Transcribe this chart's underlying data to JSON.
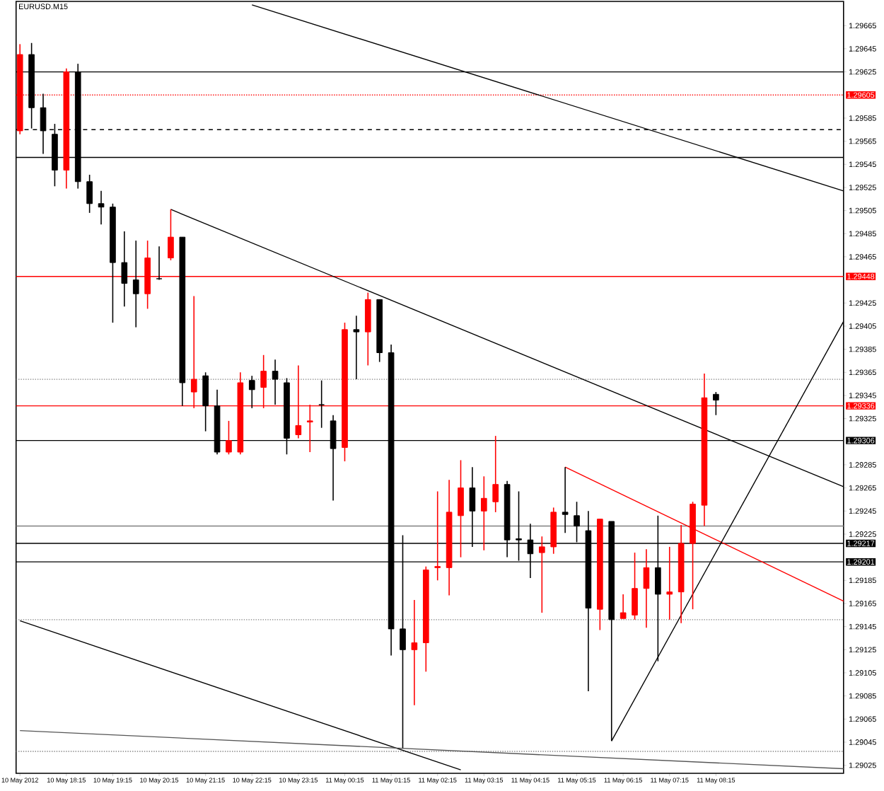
{
  "chart_data": {
    "type": "candlestick",
    "title": "EURUSD.M15",
    "x": [
      "2012-05-10T17:15",
      "2012-05-10T17:30",
      "2012-05-10T17:45",
      "2012-05-10T18:00",
      "2012-05-10T18:15",
      "2012-05-10T18:30",
      "2012-05-10T18:45",
      "2012-05-10T19:00",
      "2012-05-10T19:15",
      "2012-05-10T19:30",
      "2012-05-10T19:45",
      "2012-05-10T20:00",
      "2012-05-10T20:15",
      "2012-05-10T20:30",
      "2012-05-10T20:45",
      "2012-05-10T21:00",
      "2012-05-10T21:15",
      "2012-05-10T21:30",
      "2012-05-10T21:45",
      "2012-05-10T22:00",
      "2012-05-10T22:15",
      "2012-05-10T22:30",
      "2012-05-10T22:45",
      "2012-05-10T23:00",
      "2012-05-10T23:15",
      "2012-05-10T23:30",
      "2012-05-10T23:45",
      "2012-05-11T00:00",
      "2012-05-11T00:15",
      "2012-05-11T00:30",
      "2012-05-11T00:45",
      "2012-05-11T01:00",
      "2012-05-11T01:15",
      "2012-05-11T01:30",
      "2012-05-11T01:45",
      "2012-05-11T02:00",
      "2012-05-11T02:15",
      "2012-05-11T02:30",
      "2012-05-11T02:45",
      "2012-05-11T03:00",
      "2012-05-11T03:15",
      "2012-05-11T03:30",
      "2012-05-11T03:45",
      "2012-05-11T04:00",
      "2012-05-11T04:15",
      "2012-05-11T04:30",
      "2012-05-11T04:45",
      "2012-05-11T05:00",
      "2012-05-11T05:15",
      "2012-05-11T05:30",
      "2012-05-11T05:45",
      "2012-05-11T06:00",
      "2012-05-11T06:15",
      "2012-05-11T06:30",
      "2012-05-11T06:45",
      "2012-05-11T07:00",
      "2012-05-11T07:15",
      "2012-05-11T07:30",
      "2012-05-11T07:45",
      "2012-05-11T08:00",
      "2012-05-11T08:15"
    ],
    "ohlc": [
      [
        1.29574,
        1.29649,
        1.29571,
        1.2964
      ],
      [
        1.2964,
        1.2965,
        1.29576,
        1.29594
      ],
      [
        1.29594,
        1.29606,
        1.29554,
        1.29574
      ],
      [
        1.29571,
        1.2958,
        1.29526,
        1.2954
      ],
      [
        1.2954,
        1.29628,
        1.29524,
        1.29625
      ],
      [
        1.29625,
        1.29632,
        1.29524,
        1.2953
      ],
      [
        1.2953,
        1.29536,
        1.29503,
        1.29511
      ],
      [
        1.29511,
        1.29522,
        1.29493,
        1.29508
      ],
      [
        1.29508,
        1.29511,
        1.29408,
        1.2946
      ],
      [
        1.2946,
        1.29487,
        1.29422,
        1.29442
      ],
      [
        1.29445,
        1.29479,
        1.29404,
        1.29433
      ],
      [
        1.29433,
        1.29479,
        1.2942,
        1.29464
      ],
      [
        1.29446,
        1.29474,
        1.29445,
        1.29446
      ],
      [
        1.29464,
        1.29506,
        1.29462,
        1.29482
      ],
      [
        1.29482,
        1.29482,
        1.29336,
        1.29356
      ],
      [
        1.29348,
        1.29431,
        1.29334,
        1.29359
      ],
      [
        1.29362,
        1.29365,
        1.29314,
        1.29336
      ],
      [
        1.29336,
        1.2935,
        1.29294,
        1.29296
      ],
      [
        1.29296,
        1.29323,
        1.29294,
        1.29306
      ],
      [
        1.29296,
        1.29365,
        1.29294,
        1.29356
      ],
      [
        1.29358,
        1.29362,
        1.29334,
        1.2935
      ],
      [
        1.29352,
        1.2938,
        1.29334,
        1.29366
      ],
      [
        1.29366,
        1.29376,
        1.29337,
        1.29359
      ],
      [
        1.29356,
        1.2936,
        1.29294,
        1.29308
      ],
      [
        1.29311,
        1.29371,
        1.29308,
        1.29319
      ],
      [
        1.29322,
        1.29337,
        1.29296,
        1.29323
      ],
      [
        1.29337,
        1.29358,
        1.29317,
        1.29337
      ],
      [
        1.29323,
        1.29328,
        1.29254,
        1.29299
      ],
      [
        1.293,
        1.29408,
        1.29288,
        1.29402
      ],
      [
        1.29402,
        1.29414,
        1.29359,
        1.294
      ],
      [
        1.294,
        1.29434,
        1.29371,
        1.29428
      ],
      [
        1.29428,
        1.29428,
        1.29374,
        1.29382
      ],
      [
        1.29382,
        1.29389,
        1.2912,
        1.29143
      ],
      [
        1.29143,
        1.29224,
        1.2904,
        1.29125
      ],
      [
        1.29125,
        1.29168,
        1.29077,
        1.29131
      ],
      [
        1.29131,
        1.29197,
        1.29106,
        1.29194
      ],
      [
        1.29196,
        1.29262,
        1.29185,
        1.29197
      ],
      [
        1.29196,
        1.29272,
        1.29172,
        1.29244
      ],
      [
        1.29241,
        1.29289,
        1.29205,
        1.29265
      ],
      [
        1.29265,
        1.29283,
        1.29214,
        1.29245
      ],
      [
        1.29245,
        1.29275,
        1.29211,
        1.29256
      ],
      [
        1.29253,
        1.2931,
        1.29244,
        1.29268
      ],
      [
        1.29268,
        1.29271,
        1.29205,
        1.2922
      ],
      [
        1.29221,
        1.29262,
        1.29202,
        1.2922
      ],
      [
        1.2922,
        1.29234,
        1.29187,
        1.29208
      ],
      [
        1.29209,
        1.29223,
        1.29157,
        1.29214
      ],
      [
        1.29214,
        1.29248,
        1.29208,
        1.29244
      ],
      [
        1.29244,
        1.29283,
        1.29226,
        1.29242
      ],
      [
        1.29241,
        1.29253,
        1.29218,
        1.29232
      ],
      [
        1.29228,
        1.29245,
        1.29089,
        1.29161
      ],
      [
        1.2916,
        1.29238,
        1.29142,
        1.29238
      ],
      [
        1.29236,
        1.29236,
        1.29046,
        1.29151
      ],
      [
        1.29152,
        1.29173,
        1.29152,
        1.29157
      ],
      [
        1.29155,
        1.29209,
        1.29151,
        1.29178
      ],
      [
        1.29178,
        1.29212,
        1.29144,
        1.29196
      ],
      [
        1.29196,
        1.29241,
        1.29115,
        1.29173
      ],
      [
        1.29173,
        1.29214,
        1.29151,
        1.29175
      ],
      [
        1.29175,
        1.29233,
        1.29148,
        1.29217
      ],
      [
        1.29217,
        1.29253,
        1.2916,
        1.29251
      ],
      [
        1.2925,
        1.29364,
        1.29232,
        1.29343
      ],
      [
        1.29346,
        1.29348,
        1.29328,
        1.29341
      ]
    ],
    "colors": [
      "#ff0000",
      "#000000",
      "#000000",
      "#000000",
      "#ff0000",
      "#000000",
      "#000000",
      "#000000",
      "#000000",
      "#000000",
      "#000000",
      "#ff0000",
      "#000000",
      "#ff0000",
      "#000000",
      "#ff0000",
      "#000000",
      "#000000",
      "#ff0000",
      "#ff0000",
      "#000000",
      "#ff0000",
      "#000000",
      "#000000",
      "#ff0000",
      "#ff0000",
      "#000000",
      "#000000",
      "#ff0000",
      "#000000",
      "#ff0000",
      "#000000",
      "#000000",
      "#000000",
      "#ff0000",
      "#ff0000",
      "#ff0000",
      "#ff0000",
      "#ff0000",
      "#000000",
      "#ff0000",
      "#ff0000",
      "#000000",
      "#000000",
      "#000000",
      "#ff0000",
      "#ff0000",
      "#000000",
      "#000000",
      "#000000",
      "#ff0000",
      "#000000",
      "#ff0000",
      "#ff0000",
      "#ff0000",
      "#000000",
      "#ff0000",
      "#ff0000",
      "#ff0000",
      "#ff0000",
      "#000000"
    ],
    "xlim": [
      "2012-05-10T17:10",
      "2012-05-11T11:00"
    ],
    "xticks": [
      {
        "value": "2012-05-10T17:15",
        "label": "10 May 2012"
      },
      {
        "value": "2012-05-10T18:15",
        "label": "10 May 18:15"
      },
      {
        "value": "2012-05-10T19:15",
        "label": "10 May 19:15"
      },
      {
        "value": "2012-05-10T20:15",
        "label": "10 May 20:15"
      },
      {
        "value": "2012-05-10T21:15",
        "label": "10 May 21:15"
      },
      {
        "value": "2012-05-10T22:15",
        "label": "10 May 22:15"
      },
      {
        "value": "2012-05-10T23:15",
        "label": "10 May 23:15"
      },
      {
        "value": "2012-05-11T00:15",
        "label": "11 May 00:15"
      },
      {
        "value": "2012-05-11T01:15",
        "label": "11 May 01:15"
      },
      {
        "value": "2012-05-11T02:15",
        "label": "11 May 02:15"
      },
      {
        "value": "2012-05-11T03:15",
        "label": "11 May 03:15"
      },
      {
        "value": "2012-05-11T04:15",
        "label": "11 May 04:15"
      },
      {
        "value": "2012-05-11T05:15",
        "label": "11 May 05:15"
      },
      {
        "value": "2012-05-11T06:15",
        "label": "11 May 06:15"
      },
      {
        "value": "2012-05-11T07:15",
        "label": "11 May 07:15"
      },
      {
        "value": "2012-05-11T08:15",
        "label": "11 May 08:15"
      }
    ],
    "ylim": [
      1.29018,
      1.29686
    ],
    "yticks": [
      1.29025,
      1.29045,
      1.29065,
      1.29085,
      1.29105,
      1.29125,
      1.29145,
      1.29165,
      1.29185,
      1.29225,
      1.29245,
      1.29265,
      1.29285,
      1.29325,
      1.29345,
      1.29365,
      1.29385,
      1.29405,
      1.29425,
      1.29465,
      1.29485,
      1.29505,
      1.29525,
      1.29545,
      1.29565,
      1.29585,
      1.29625,
      1.29645,
      1.29665
    ],
    "ref_lines": [
      {
        "axis": "y",
        "value": 1.29625,
        "color": "#000000",
        "line_style": "solid"
      },
      {
        "axis": "y",
        "value": 1.29605,
        "label": "1.29605",
        "color": "#ff0000",
        "line_style": "dotted"
      },
      {
        "axis": "y",
        "value": 1.29575,
        "color": "#000000",
        "line_style": "dashed"
      },
      {
        "axis": "y",
        "value": 1.29551,
        "color": "#000000",
        "line_style": "solid"
      },
      {
        "axis": "y",
        "value": 1.29448,
        "label": "1.29448",
        "color": "#ff0000",
        "line_style": "solid"
      },
      {
        "axis": "y",
        "value": 1.29359,
        "color": "#808080",
        "line_style": "dotted"
      },
      {
        "axis": "y",
        "value": 1.29336,
        "label": "1.29336",
        "color": "#ff0000",
        "line_style": "solid"
      },
      {
        "axis": "y",
        "value": 1.29306,
        "label": "1.29306",
        "color": "#000000",
        "line_style": "solid"
      },
      {
        "axis": "y",
        "value": 1.29232,
        "color": "#808080",
        "line_style": "solid"
      },
      {
        "axis": "y",
        "value": 1.29217,
        "label": "1.29217",
        "color": "#000000",
        "line_style": "solid"
      },
      {
        "axis": "y",
        "value": 1.29201,
        "label": "1.29201",
        "color": "#000000",
        "line_style": "solid"
      },
      {
        "axis": "y",
        "value": 1.29151,
        "color": "#808080",
        "line_style": "dotted"
      },
      {
        "axis": "y",
        "value": 1.29037,
        "color": "#808080",
        "line_style": "dotted"
      }
    ],
    "series": [
      {
        "type": "line",
        "color": "#000000",
        "x": [
          "2012-05-10T22:15",
          "2012-05-11T11:00"
        ],
        "values": [
          1.29683,
          1.29522
        ]
      },
      {
        "type": "line",
        "color": "#000000",
        "x": [
          "2012-05-10T20:30",
          "2012-05-11T11:00"
        ],
        "values": [
          1.29506,
          1.29266
        ]
      },
      {
        "type": "line",
        "color": "#ff0000",
        "x": [
          "2012-05-11T05:00",
          "2012-05-11T11:00"
        ],
        "values": [
          1.29283,
          1.29167
        ]
      },
      {
        "type": "line",
        "color": "#000000",
        "x": [
          "2012-05-11T06:00",
          "2012-05-11T11:00"
        ],
        "values": [
          1.29046,
          1.29409
        ]
      },
      {
        "type": "line",
        "color": "#000000",
        "x": [
          "2012-05-10T17:15",
          "2012-05-11T02:45"
        ],
        "values": [
          1.2915,
          1.29021
        ]
      },
      {
        "type": "line",
        "color": "#555555",
        "x": [
          "2012-05-10T17:15",
          "2012-05-11T11:00"
        ],
        "values": [
          1.29055,
          1.29022
        ]
      }
    ]
  }
}
